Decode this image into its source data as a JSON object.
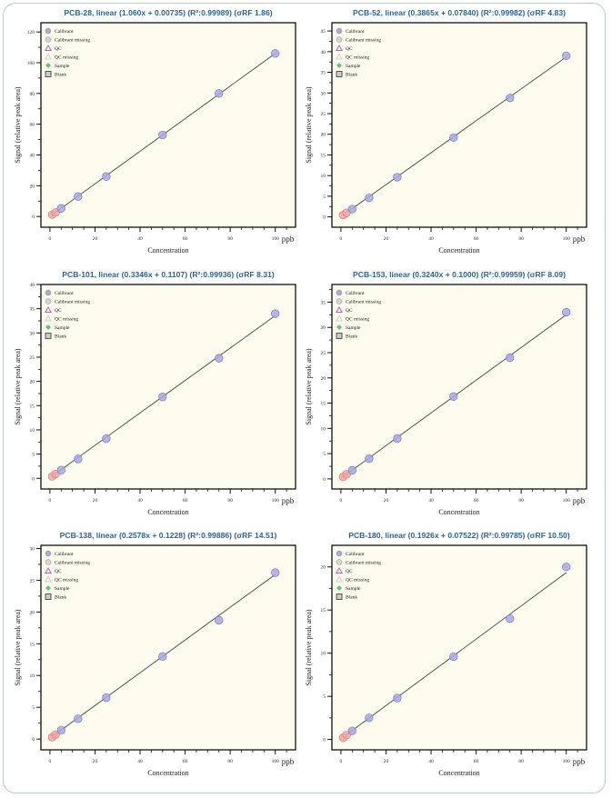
{
  "colors": {
    "title": "#2a6496",
    "plot_bg": "#fdfcee",
    "calibrant": "#a9a9e3",
    "calibrant_edge": "#7b7bc4",
    "low_point": "#f2a3a3",
    "low_point_edge": "#d98080",
    "fit_line": "#555555"
  },
  "legend": [
    {
      "label": "Calibrant",
      "icon": "circle",
      "color": "#a9a9e3"
    },
    {
      "label": "Calibrant missing",
      "icon": "circle",
      "color": "#d6d6d6"
    },
    {
      "label": "QC",
      "icon": "triangle",
      "color": "#c060b0"
    },
    {
      "label": "QC missing",
      "icon": "triangle",
      "color": "#cfcfcf"
    },
    {
      "label": "Sample",
      "icon": "diamond",
      "color": "#6dbf7a"
    },
    {
      "label": "Blank",
      "icon": "square",
      "color": "#999999"
    }
  ],
  "chart_data": [
    {
      "type": "scatter",
      "title": "PCB-28, linear (1.060x + 0.00735) (R²:0.99989) (σRF 1.86)",
      "xlabel": "Concentration",
      "xunit": "ppb",
      "ylabel": "Signal (relative peak area)",
      "slope": 1.06,
      "intercept": 0.00735,
      "xlim": [
        -4,
        109
      ],
      "ylim": [
        -7,
        126
      ],
      "xticks": [
        0,
        20,
        40,
        60,
        80,
        100
      ],
      "yticks": [
        0,
        20,
        40,
        60,
        80,
        100,
        120
      ],
      "grid": false,
      "legend_position": "top-left",
      "x": [
        1,
        2.5,
        5,
        12.5,
        25,
        50,
        75,
        100
      ],
      "y": [
        1.2,
        2.6,
        5.3,
        13,
        26,
        53,
        80,
        106
      ]
    },
    {
      "type": "scatter",
      "title": "PCB-52, linear (0.3865x + 0.07840) (R²:0.99982) (σRF 4.83)",
      "xlabel": "Concentration",
      "xunit": "ppb",
      "ylabel": "Signal (relative peak area)",
      "slope": 0.3865,
      "intercept": 0.0784,
      "xlim": [
        -4,
        109
      ],
      "ylim": [
        -2.5,
        47
      ],
      "xticks": [
        0,
        20,
        40,
        60,
        80,
        100
      ],
      "yticks": [
        0,
        5,
        10,
        15,
        20,
        25,
        30,
        35,
        40,
        45
      ],
      "grid": false,
      "legend_position": "top-left",
      "x": [
        1,
        2.5,
        5,
        12.5,
        25,
        50,
        75,
        100
      ],
      "y": [
        0.45,
        1.0,
        1.9,
        4.6,
        9.6,
        19.2,
        28.8,
        39
      ]
    },
    {
      "type": "scatter",
      "title": "PCB-101, linear (0.3346x + 0.1107) (R²:0.99936) (σRF 8.31)",
      "xlabel": "Concentration",
      "xunit": "ppb",
      "ylabel": "Signal (relative peak area)",
      "slope": 0.3346,
      "intercept": 0.1107,
      "xlim": [
        -4,
        109
      ],
      "ylim": [
        -2.2,
        40
      ],
      "xticks": [
        0,
        20,
        40,
        60,
        80,
        100
      ],
      "yticks": [
        0,
        5,
        10,
        15,
        20,
        25,
        30,
        35,
        40
      ],
      "grid": false,
      "legend_position": "top-left",
      "x": [
        1,
        2.5,
        5,
        12.5,
        25,
        50,
        75,
        100
      ],
      "y": [
        0.4,
        0.9,
        1.7,
        4.0,
        8.2,
        16.8,
        24.8,
        34
      ]
    },
    {
      "type": "scatter",
      "title": "PCB-153, linear (0.3240x + 0.1000) (R²:0.99959) (σRF 8.09)",
      "xlabel": "Concentration",
      "xunit": "ppb",
      "ylabel": "Signal (relative peak area)",
      "slope": 0.324,
      "intercept": 0.1,
      "xlim": [
        -4,
        109
      ],
      "ylim": [
        -2,
        38.5
      ],
      "xticks": [
        0,
        20,
        40,
        60,
        80,
        100
      ],
      "yticks": [
        0,
        5,
        10,
        15,
        20,
        25,
        30,
        35
      ],
      "grid": false,
      "legend_position": "top-left",
      "x": [
        1,
        2.5,
        5,
        12.5,
        25,
        50,
        75,
        100
      ],
      "y": [
        0.4,
        0.9,
        1.7,
        4.0,
        8.0,
        16.3,
        24,
        33
      ]
    },
    {
      "type": "scatter",
      "title": "PCB-138, linear (0.2578x + 0.1228) (R²:0.99886) (σRF 14.51)",
      "xlabel": "Concentration",
      "xunit": "ppb",
      "ylabel": "Signal (relative peak area)",
      "slope": 0.2578,
      "intercept": 0.1228,
      "xlim": [
        -4,
        109
      ],
      "ylim": [
        -1.7,
        30.5
      ],
      "xticks": [
        0,
        20,
        40,
        60,
        80,
        100
      ],
      "yticks": [
        0,
        5,
        10,
        15,
        20,
        25,
        30
      ],
      "grid": false,
      "legend_position": "top-left",
      "x": [
        1,
        2.5,
        5,
        12.5,
        25,
        50,
        75,
        100
      ],
      "y": [
        0.3,
        0.7,
        1.4,
        3.2,
        6.5,
        13,
        18.7,
        26.2
      ]
    },
    {
      "type": "scatter",
      "title": "PCB-180, linear (0.1926x + 0.07522) (R²:0.99785) (σRF 10.50)",
      "xlabel": "Concentration",
      "xunit": "ppb",
      "ylabel": "Signal (relative peak area)",
      "slope": 0.1926,
      "intercept": 0.07522,
      "xlim": [
        -4,
        109
      ],
      "ylim": [
        -1.2,
        22.5
      ],
      "xticks": [
        0,
        20,
        40,
        60,
        80,
        100
      ],
      "yticks": [
        0,
        5,
        10,
        15,
        20
      ],
      "grid": false,
      "legend_position": "top-left",
      "x": [
        1,
        2.5,
        5,
        12.5,
        25,
        50,
        75,
        100
      ],
      "y": [
        0.2,
        0.5,
        1.0,
        2.5,
        4.8,
        9.6,
        14,
        20
      ]
    }
  ]
}
